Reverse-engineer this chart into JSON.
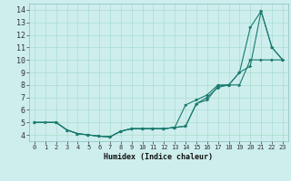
{
  "xlabel": "Humidex (Indice chaleur)",
  "background_color": "#cdeeed",
  "grid_color": "#aaddcc",
  "line_color": "#1a7a6e",
  "xlim": [
    -0.5,
    23.5
  ],
  "ylim": [
    3.5,
    14.5
  ],
  "xticks": [
    0,
    1,
    2,
    3,
    4,
    5,
    6,
    7,
    8,
    9,
    10,
    11,
    12,
    13,
    14,
    15,
    16,
    17,
    18,
    19,
    20,
    21,
    22,
    23
  ],
  "yticks": [
    4,
    5,
    6,
    7,
    8,
    9,
    10,
    11,
    12,
    13,
    14
  ],
  "line1_x": [
    0,
    1,
    2,
    3,
    4,
    5,
    6,
    7,
    8,
    9,
    10,
    11,
    12,
    13,
    14,
    15,
    16,
    17,
    18,
    19,
    20,
    21,
    22,
    23
  ],
  "line1_y": [
    5.0,
    5.0,
    5.0,
    4.4,
    4.1,
    4.0,
    3.9,
    3.85,
    4.3,
    4.5,
    4.5,
    4.5,
    4.5,
    4.6,
    4.7,
    6.5,
    7.0,
    7.8,
    8.0,
    8.0,
    10.0,
    10.0,
    10.0,
    10.0
  ],
  "line2_x": [
    0,
    2,
    3,
    4,
    5,
    6,
    7,
    8,
    9,
    10,
    11,
    12,
    13,
    14,
    15,
    16,
    17,
    18,
    19,
    20,
    21,
    22,
    23
  ],
  "line2_y": [
    5.0,
    5.0,
    4.4,
    4.1,
    4.0,
    3.9,
    3.85,
    4.3,
    4.5,
    4.5,
    4.5,
    4.5,
    4.6,
    6.4,
    6.8,
    7.2,
    8.0,
    8.0,
    9.0,
    12.6,
    13.9,
    11.0,
    10.0
  ],
  "line3_x": [
    0,
    2,
    3,
    4,
    5,
    6,
    7,
    8,
    9,
    10,
    11,
    12,
    13,
    14,
    15,
    16,
    17,
    18,
    19,
    20,
    21,
    22,
    23
  ],
  "line3_y": [
    5.0,
    5.0,
    4.4,
    4.1,
    4.0,
    3.9,
    3.85,
    4.3,
    4.5,
    4.5,
    4.5,
    4.5,
    4.6,
    4.7,
    6.5,
    6.8,
    7.9,
    8.0,
    9.0,
    9.5,
    13.9,
    11.0,
    10.0
  ]
}
